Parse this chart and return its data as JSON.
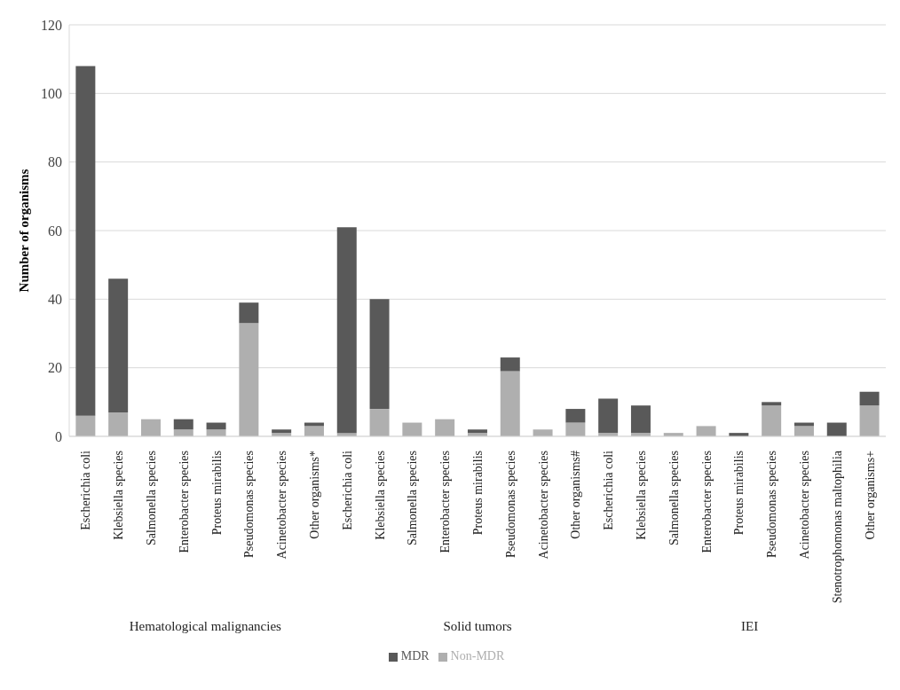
{
  "chart_data": {
    "type": "bar",
    "stacked": true,
    "ylabel": "Number of organisms",
    "categories": [
      "Escherichia coli",
      "Klebsiella species",
      "Salmonella species",
      "Enterobacter species",
      "Proteus mirabilis",
      "Pseudomonas species",
      "Acinetobacter species",
      "Other organisms*",
      "Escherichia coli",
      "Klebsiella species",
      "Salmonella species",
      "Enterobacter species",
      "Proteus mirabilis",
      "Pseudomonas species",
      "Acinetobacter species",
      "Other organisms#",
      "Escherichia coli",
      "Klebsiella species",
      "Salmonella species",
      "Enterobacter species",
      "Proteus mirabilis",
      "Pseudomonas species",
      "Acinetobacter species",
      "Stenotrophomonas maltophilia",
      "Other organisms+"
    ],
    "series": [
      {
        "name": "Non-MDR",
        "color": "#afafaf",
        "values": [
          6,
          7,
          5,
          2,
          2,
          33,
          1,
          3,
          1,
          8,
          4,
          5,
          1,
          19,
          2,
          4,
          1,
          1,
          1,
          3,
          0,
          9,
          3,
          0,
          9
        ]
      },
      {
        "name": "MDR",
        "color": "#595959",
        "values": [
          102,
          39,
          0,
          3,
          2,
          6,
          1,
          1,
          60,
          32,
          0,
          0,
          1,
          4,
          0,
          4,
          10,
          8,
          0,
          0,
          1,
          1,
          1,
          4,
          4
        ]
      }
    ],
    "ylim": [
      0,
      120
    ],
    "yticks": [
      0,
      20,
      40,
      60,
      80,
      100,
      120
    ],
    "grid": "y",
    "legend": "bottom",
    "annotations": [
      "Hematological malignancies",
      "Solid tumors",
      "IEI"
    ]
  }
}
